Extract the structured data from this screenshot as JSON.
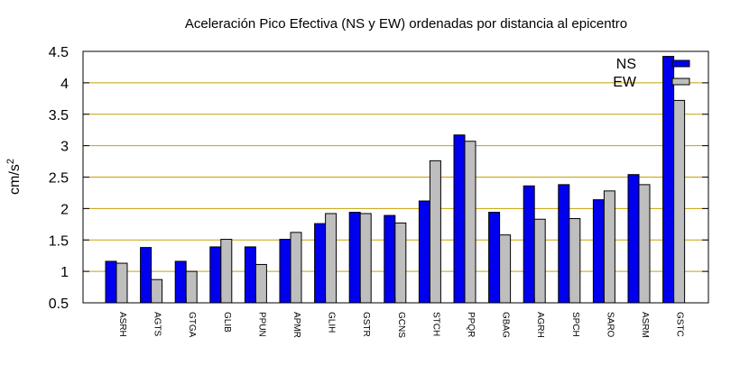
{
  "chart_data": {
    "type": "bar",
    "title": "Aceleración Pico Efectiva (NS y EW) ordenadas por distancia al epicentro",
    "ylabel": "cm/s",
    "ylabel_sup": "2",
    "xlabel": "",
    "ylim": [
      0.5,
      4.5
    ],
    "yticks": [
      "0.5",
      "1",
      "1.5",
      "2",
      "2.5",
      "3",
      "3.5",
      "4",
      "4.5"
    ],
    "grid": true,
    "legend_position": "top-right",
    "categories": [
      "ASRH",
      "AGTS",
      "GTGA",
      "GLIB",
      "PPUN",
      "APMR",
      "GLIH",
      "GSTR",
      "GCNS",
      "STCH",
      "PPQR",
      "GBAG",
      "AGRH",
      "SPCH",
      "SARO",
      "ASRM",
      "GSTC"
    ],
    "series": [
      {
        "name": "NS",
        "color": "#0000ee",
        "values": [
          1.16,
          1.38,
          1.16,
          1.39,
          1.39,
          1.51,
          1.76,
          1.94,
          1.89,
          2.12,
          3.17,
          1.94,
          2.36,
          2.38,
          2.14,
          2.54,
          4.42
        ]
      },
      {
        "name": "EW",
        "color": "#bebebe",
        "values": [
          1.13,
          0.87,
          1.0,
          1.51,
          1.11,
          1.62,
          1.92,
          1.92,
          1.77,
          2.76,
          3.07,
          1.58,
          1.83,
          1.84,
          2.28,
          2.38,
          3.72
        ]
      }
    ],
    "grid_color": "#c8a000"
  }
}
